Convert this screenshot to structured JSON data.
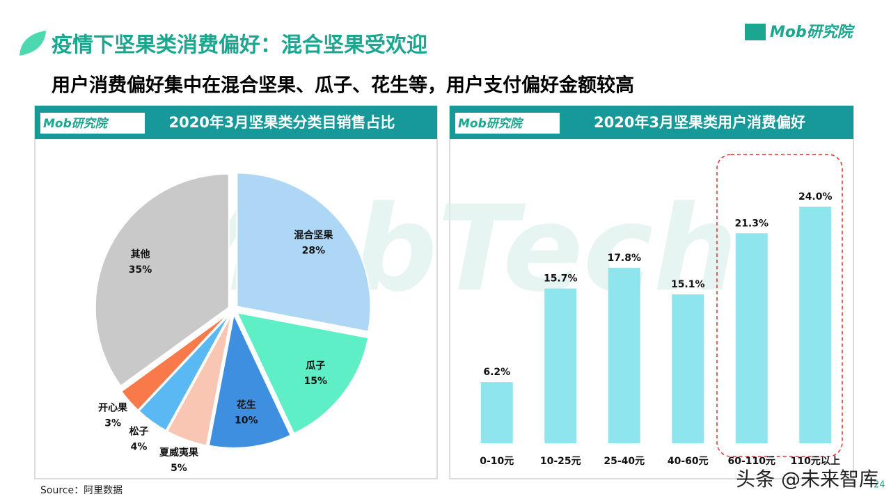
{
  "title": "疫情下坚果类消费偏好：混合坚果受欢迎",
  "subtitle": "用户消费偏好集中在混合坚果、瓜子、花生等，用户支付偏好金额较高",
  "logo": "Mob研究院",
  "watermark": "MobTech",
  "source": "Source：阿里数据",
  "page_number": "24",
  "overlay": "头条 @未来智库",
  "chart_data": [
    {
      "type": "pie",
      "title": "2020年3月坚果类分类目销售占比",
      "categories": [
        "混合坚果",
        "瓜子",
        "花生",
        "夏威夷果",
        "松子",
        "开心果",
        "其他"
      ],
      "values": [
        28,
        15,
        10,
        5,
        4,
        3,
        35
      ],
      "value_labels": [
        "28%",
        "15%",
        "10%",
        "5%",
        "4%",
        "3%",
        "35%"
      ],
      "colors": [
        "#aed6f5",
        "#5eefc6",
        "#3f8fe0",
        "#f8c6b2",
        "#5ab8f2",
        "#f8794a",
        "#c9c9c9"
      ]
    },
    {
      "type": "bar",
      "title": "2020年3月坚果类用户消费偏好",
      "categories": [
        "0-10元",
        "10-25元",
        "25-40元",
        "40-60元",
        "60-110元",
        "110元以上"
      ],
      "values": [
        6.2,
        15.7,
        17.8,
        15.1,
        21.3,
        24.0
      ],
      "value_labels": [
        "6.2%",
        "15.7%",
        "17.8%",
        "15.1%",
        "21.3%",
        "24.0%"
      ],
      "color": "#8ee5ee"
    }
  ]
}
